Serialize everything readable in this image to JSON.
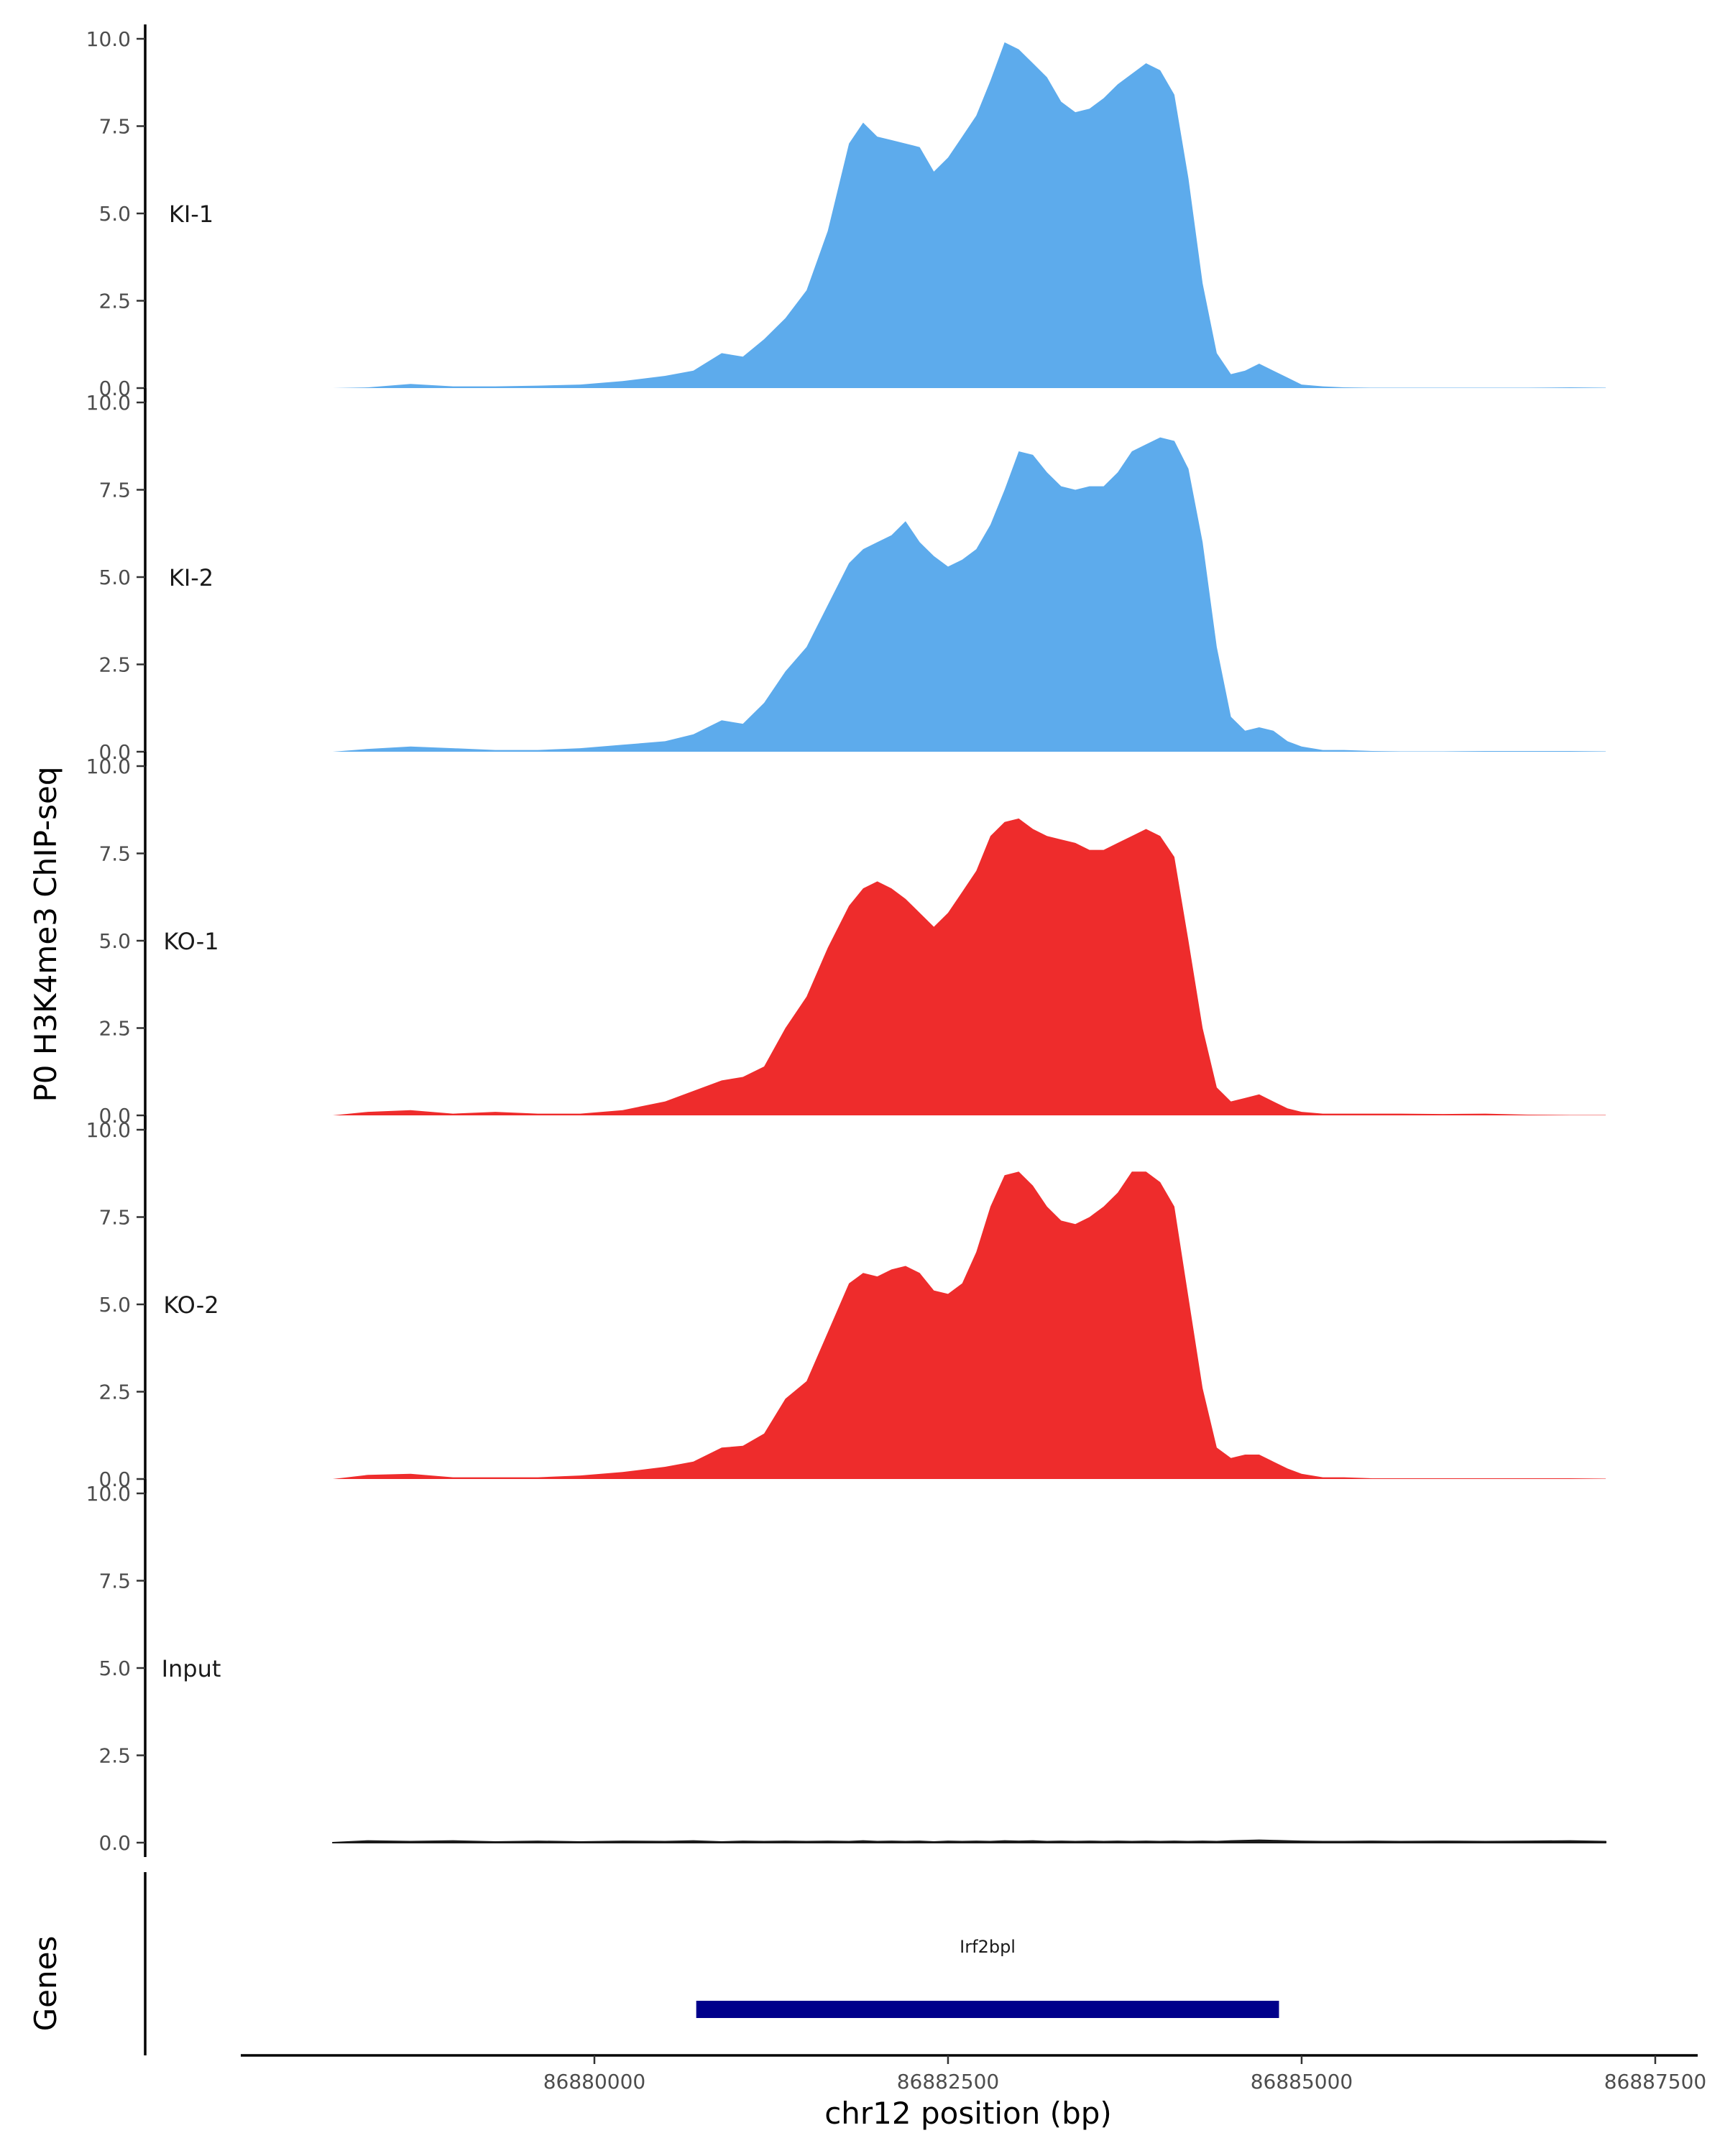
{
  "chart_data": {
    "type": "area",
    "ylabel": "P0 H3K4me3 ChIP-seq",
    "xlabel": "chr12 position (bp)",
    "genes_label": "Genes",
    "xlim": [
      86877500,
      86887800
    ],
    "ylim": [
      0,
      10
    ],
    "x_ticks": [
      86880000,
      86882500,
      86885000,
      86887500
    ],
    "x_tick_labels": [
      "86880000",
      "86882500",
      "86885000",
      "86887500"
    ],
    "y_ticks": [
      0,
      2.5,
      5,
      7.5,
      10
    ],
    "y_tick_labels": [
      "0.0",
      "2.5",
      "5.0",
      "7.5",
      "10.0"
    ],
    "x": [
      86878150,
      86878400,
      86878700,
      86879000,
      86879300,
      86879600,
      86879900,
      86880200,
      86880500,
      86880700,
      86880900,
      86881050,
      86881200,
      86881350,
      86881500,
      86881650,
      86881800,
      86881900,
      86882000,
      86882100,
      86882200,
      86882300,
      86882400,
      86882500,
      86882600,
      86882700,
      86882800,
      86882900,
      86883000,
      86883100,
      86883200,
      86883300,
      86883400,
      86883500,
      86883600,
      86883700,
      86883800,
      86883900,
      86884000,
      86884100,
      86884200,
      86884300,
      86884400,
      86884500,
      86884600,
      86884700,
      86884800,
      86884900,
      86885000,
      86885150,
      86885300,
      86885500,
      86885700,
      86886000,
      86886300,
      86886600,
      86886900,
      86887150
    ],
    "series": [
      {
        "name": "KI-1",
        "color": "#5DABEC",
        "values": [
          0,
          0.02,
          0.12,
          0.05,
          0.05,
          0.07,
          0.1,
          0.2,
          0.35,
          0.5,
          1.0,
          0.9,
          1.4,
          2.0,
          2.8,
          4.5,
          7.0,
          7.6,
          7.2,
          7.1,
          7.0,
          6.9,
          6.2,
          6.6,
          7.2,
          7.8,
          8.8,
          9.9,
          9.7,
          9.3,
          8.9,
          8.2,
          7.9,
          8.0,
          8.3,
          8.7,
          9.0,
          9.3,
          9.1,
          8.4,
          6.0,
          3.0,
          1.0,
          0.4,
          0.5,
          0.7,
          0.5,
          0.3,
          0.1,
          0.05,
          0.02,
          0.01,
          0.01,
          0.01,
          0.01,
          0.01,
          0.02,
          0.01
        ]
      },
      {
        "name": "KI-2",
        "color": "#5DABEC",
        "values": [
          0,
          0.08,
          0.15,
          0.1,
          0.05,
          0.05,
          0.1,
          0.2,
          0.3,
          0.5,
          0.9,
          0.8,
          1.4,
          2.3,
          3.0,
          4.2,
          5.4,
          5.8,
          6.0,
          6.2,
          6.6,
          6.0,
          5.6,
          5.3,
          5.5,
          5.8,
          6.5,
          7.5,
          8.6,
          8.5,
          8.0,
          7.6,
          7.5,
          7.6,
          7.6,
          8.0,
          8.6,
          8.8,
          9.0,
          8.9,
          8.1,
          6.0,
          3.0,
          1.0,
          0.6,
          0.7,
          0.6,
          0.3,
          0.15,
          0.05,
          0.05,
          0.02,
          0.01,
          0.01,
          0.02,
          0.02,
          0.02,
          0.01
        ]
      },
      {
        "name": "KO-1",
        "color": "#EE2C2C",
        "values": [
          0,
          0.1,
          0.15,
          0.05,
          0.1,
          0.05,
          0.05,
          0.15,
          0.4,
          0.7,
          1.0,
          1.1,
          1.4,
          2.5,
          3.4,
          4.8,
          6.0,
          6.5,
          6.7,
          6.5,
          6.2,
          5.8,
          5.4,
          5.8,
          6.4,
          7.0,
          8.0,
          8.4,
          8.5,
          8.2,
          8.0,
          7.9,
          7.8,
          7.6,
          7.6,
          7.8,
          8.0,
          8.2,
          8.0,
          7.4,
          5.0,
          2.5,
          0.8,
          0.4,
          0.5,
          0.6,
          0.4,
          0.2,
          0.1,
          0.05,
          0.05,
          0.05,
          0.05,
          0.04,
          0.05,
          0.02,
          0.01,
          0.01
        ]
      },
      {
        "name": "KO-2",
        "color": "#EE2C2C",
        "values": [
          0,
          0.12,
          0.15,
          0.05,
          0.05,
          0.05,
          0.1,
          0.2,
          0.35,
          0.5,
          0.9,
          0.95,
          1.3,
          2.3,
          2.8,
          4.2,
          5.6,
          5.9,
          5.8,
          6.0,
          6.1,
          5.9,
          5.4,
          5.3,
          5.6,
          6.5,
          7.8,
          8.7,
          8.8,
          8.4,
          7.8,
          7.4,
          7.3,
          7.5,
          7.8,
          8.2,
          8.8,
          8.8,
          8.5,
          7.8,
          5.2,
          2.6,
          0.9,
          0.6,
          0.7,
          0.7,
          0.5,
          0.3,
          0.15,
          0.05,
          0.05,
          0.02,
          0.02,
          0.02,
          0.02,
          0.02,
          0.02,
          0.01
        ]
      },
      {
        "name": "Input",
        "color": "#1a1a1a",
        "values": [
          0,
          0.05,
          0.03,
          0.05,
          0.02,
          0.04,
          0.02,
          0.04,
          0.03,
          0.05,
          0.02,
          0.04,
          0.03,
          0.04,
          0.03,
          0.04,
          0.03,
          0.05,
          0.03,
          0.04,
          0.03,
          0.04,
          0.02,
          0.04,
          0.03,
          0.04,
          0.03,
          0.05,
          0.04,
          0.05,
          0.03,
          0.04,
          0.03,
          0.04,
          0.03,
          0.04,
          0.03,
          0.04,
          0.03,
          0.04,
          0.03,
          0.04,
          0.03,
          0.05,
          0.06,
          0.07,
          0.06,
          0.05,
          0.04,
          0.03,
          0.03,
          0.04,
          0.03,
          0.04,
          0.03,
          0.04,
          0.05,
          0.03
        ]
      }
    ],
    "genes": [
      {
        "name": "Irf2bpl",
        "start": 86880720,
        "end": 86884840,
        "color": "#00008B"
      }
    ]
  }
}
